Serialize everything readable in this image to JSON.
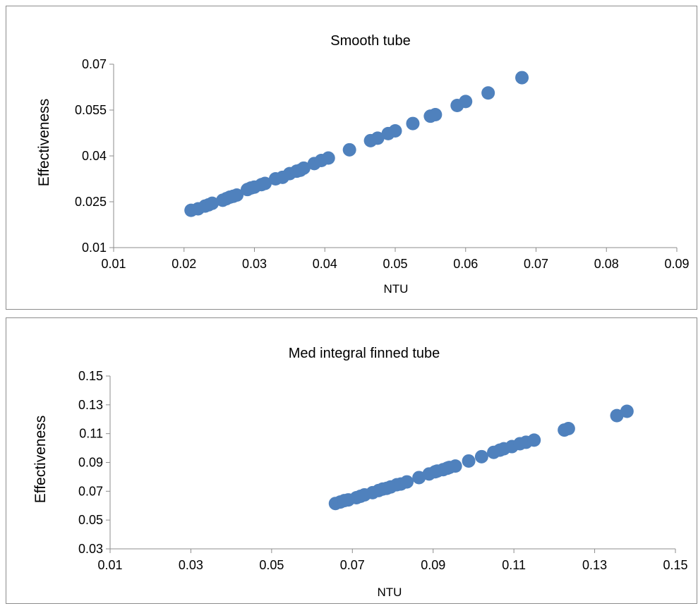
{
  "chart_data": [
    {
      "type": "scatter",
      "title": "Smooth tube",
      "xlabel": "NTU",
      "ylabel": "Effectiveness",
      "xlim": [
        0.01,
        0.09
      ],
      "ylim": [
        0.01,
        0.07
      ],
      "xticks": [
        "0.01",
        "0.02",
        "0.03",
        "0.04",
        "0.05",
        "0.06",
        "0.07",
        "0.08",
        "0.09"
      ],
      "yticks": [
        "0.01",
        "0.025",
        "0.04",
        "0.055",
        "0.07"
      ],
      "grid": false,
      "marker_color": "#4f81bd",
      "series": [
        {
          "x": [
            0.021,
            0.022,
            0.023,
            0.0235,
            0.024,
            0.0255,
            0.026,
            0.0265,
            0.027,
            0.0275,
            0.029,
            0.0295,
            0.03,
            0.031,
            0.0315,
            0.033,
            0.034,
            0.035,
            0.036,
            0.0365,
            0.037,
            0.0385,
            0.0395,
            0.0405,
            0.0435,
            0.0465,
            0.0475,
            0.049,
            0.05,
            0.0525,
            0.055,
            0.0557,
            0.0588,
            0.06,
            0.0632,
            0.068
          ],
          "y": [
            0.0222,
            0.0227,
            0.0236,
            0.024,
            0.0245,
            0.0255,
            0.026,
            0.0265,
            0.0268,
            0.0272,
            0.029,
            0.0295,
            0.0298,
            0.0306,
            0.031,
            0.0325,
            0.033,
            0.0342,
            0.035,
            0.0353,
            0.036,
            0.0375,
            0.0385,
            0.0393,
            0.042,
            0.045,
            0.0458,
            0.0473,
            0.0482,
            0.0506,
            0.053,
            0.0535,
            0.0565,
            0.0578,
            0.0606,
            0.0656
          ]
        }
      ]
    },
    {
      "type": "scatter",
      "title": "Med integral finned tube",
      "xlabel": "NTU",
      "ylabel": "Effectiveness",
      "xlim": [
        0.01,
        0.15
      ],
      "ylim": [
        0.03,
        0.15
      ],
      "xticks": [
        "0.01",
        "0.03",
        "0.05",
        "0.07",
        "0.09",
        "0.11",
        "0.13",
        "0.15"
      ],
      "yticks": [
        "0.03",
        "0.05",
        "0.07",
        "0.09",
        "0.11",
        "0.13",
        "0.15"
      ],
      "grid": false,
      "marker_color": "#4f81bd",
      "series": [
        {
          "x": [
            0.0658,
            0.067,
            0.068,
            0.069,
            0.071,
            0.072,
            0.073,
            0.075,
            0.0765,
            0.0775,
            0.0785,
            0.0795,
            0.081,
            0.082,
            0.0835,
            0.0865,
            0.089,
            0.0905,
            0.091,
            0.0925,
            0.0935,
            0.094,
            0.0955,
            0.0988,
            0.102,
            0.105,
            0.1065,
            0.1075,
            0.1095,
            0.1115,
            0.113,
            0.115,
            0.1225,
            0.1235,
            0.1355,
            0.138
          ],
          "y": [
            0.0615,
            0.0625,
            0.0635,
            0.064,
            0.0655,
            0.0665,
            0.0675,
            0.069,
            0.0705,
            0.0715,
            0.072,
            0.073,
            0.0745,
            0.075,
            0.0765,
            0.0795,
            0.082,
            0.0835,
            0.084,
            0.085,
            0.086,
            0.0865,
            0.0875,
            0.091,
            0.094,
            0.097,
            0.0985,
            0.0995,
            0.101,
            0.103,
            0.104,
            0.1055,
            0.1125,
            0.1135,
            0.1225,
            0.1255
          ]
        }
      ]
    }
  ]
}
